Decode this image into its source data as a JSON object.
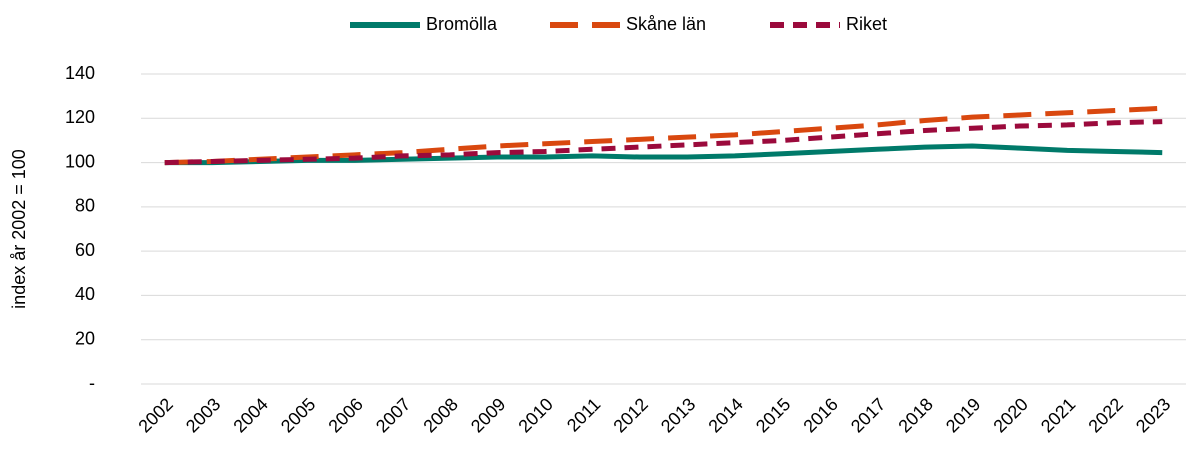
{
  "chart_data": {
    "type": "line",
    "y_label": "index år 2002 = 100",
    "categories": [
      "2002",
      "2003",
      "2004",
      "2005",
      "2006",
      "2007",
      "2008",
      "2009",
      "2010",
      "2011",
      "2012",
      "2013",
      "2014",
      "2015",
      "2016",
      "2017",
      "2018",
      "2019",
      "2020",
      "2021",
      "2022",
      "2023"
    ],
    "series": [
      {
        "name": "Bromölla",
        "color": "#007a6a",
        "values": [
          100,
          100,
          100.5,
          101,
          101,
          101.5,
          102,
          102.5,
          102.5,
          103,
          102.5,
          102.5,
          103,
          104,
          105,
          106,
          107,
          107.5,
          106.5,
          105.5,
          105,
          104.5
        ]
      },
      {
        "name": "Skåne län",
        "color": "#d9480f",
        "values": [
          100,
          100.5,
          101.5,
          102.5,
          103.5,
          104.5,
          106,
          107.5,
          108.5,
          109.5,
          110.5,
          111.5,
          112.5,
          114,
          115.5,
          117,
          119,
          120.5,
          121.5,
          122.5,
          123.5,
          124.5
        ]
      },
      {
        "name": "Riket",
        "color": "#9b0a3c",
        "values": [
          100,
          100.5,
          101,
          101.5,
          102,
          103,
          103.5,
          104.5,
          105,
          106,
          107,
          108,
          109,
          110,
          111.5,
          113,
          114.5,
          115.5,
          116.5,
          117,
          118,
          118.5
        ]
      }
    ],
    "ylim": [
      0,
      140
    ],
    "yticks": [
      {
        "value": 0,
        "label": "-"
      },
      20,
      40,
      60,
      80,
      100,
      120,
      140
    ],
    "grid": true,
    "legend": "top"
  }
}
